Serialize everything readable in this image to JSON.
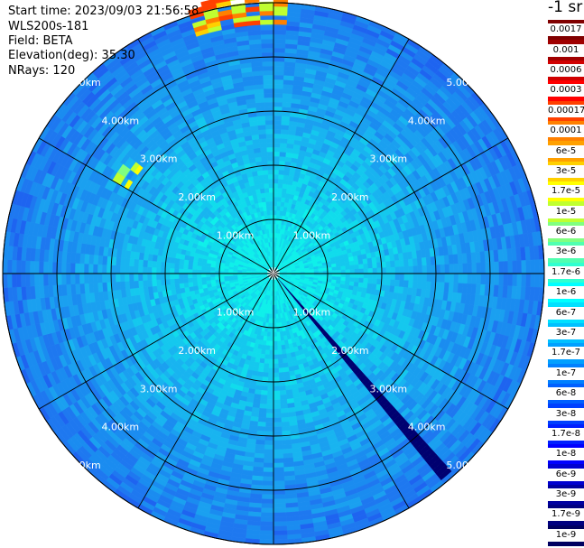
{
  "header": {
    "start_time": "Start time: 2023/09/03 21:56:58",
    "instrument": "WLS200s-181",
    "field": "Field: BETA",
    "elevation": "Elevation(deg): 35.30",
    "nrays": "NRays: 120"
  },
  "colorbar": {
    "unit": "-1 sr",
    "labels": [
      "0.0017",
      "0.001",
      "0.0006",
      "0.0003",
      "0.00017",
      "0.0001",
      "6e-5",
      "3e-5",
      "1.7e-5",
      "1e-5",
      "6e-6",
      "3e-6",
      "1.7e-6",
      "1e-6",
      "6e-7",
      "3e-7",
      "1.7e-7",
      "1e-7",
      "6e-8",
      "3e-8",
      "1.7e-8",
      "1e-8",
      "6e-9",
      "3e-9",
      "1.7e-9",
      "1e-9"
    ],
    "colors": [
      "#800000",
      "#a00000",
      "#d00000",
      "#ff0000",
      "#ff4000",
      "#ff8000",
      "#ffa000",
      "#ffd000",
      "#ffff00",
      "#c0ff30",
      "#80ff80",
      "#50ffb0",
      "#30ffd0",
      "#00ffff",
      "#00e0ff",
      "#00c0ff",
      "#00a0ff",
      "#0080ff",
      "#0060ff",
      "#0040ff",
      "#0020ff",
      "#0000ff",
      "#0000d0",
      "#0000a0",
      "#000080",
      "#000060"
    ]
  },
  "chart_data": {
    "type": "polar-ppi",
    "title": "",
    "range_rings_km": [
      1,
      2,
      3,
      4,
      5
    ],
    "range_labels": [
      "1.00km",
      "2.00km",
      "3.00km",
      "4.00km",
      "5.00km"
    ],
    "max_range_km": 5.0,
    "n_rays": 120,
    "azimuth_spokes_deg": [
      0,
      30,
      60,
      90,
      120,
      150,
      180,
      210,
      240,
      270,
      300,
      330
    ],
    "blocked_sector_deg": [
      139.5,
      141.5
    ],
    "features": [
      {
        "azimuth_deg": [
          -18,
          2
        ],
        "range_km": [
          4.6,
          5.1
        ],
        "level": "high"
      },
      {
        "azimuth_deg": [
          -60,
          -53
        ],
        "range_km": [
          3.1,
          3.4
        ],
        "level": "mid"
      }
    ]
  }
}
